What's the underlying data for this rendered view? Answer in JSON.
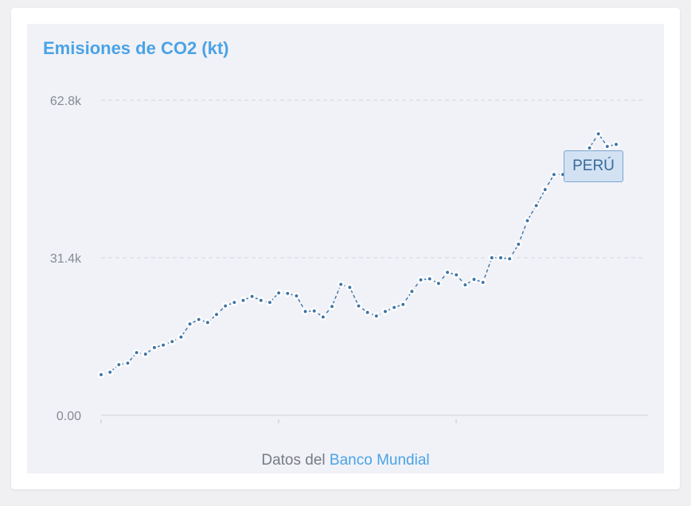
{
  "title": "Emisiones de CO2 (kt)",
  "source": {
    "prefix": "Datos del",
    "link_label": "Banco Mundial"
  },
  "colors": {
    "line": "#3d74a6",
    "title": "#4aa3e6",
    "grid": "#d4d6dc",
    "label_bg": "#d3e2f3"
  },
  "chart_data": {
    "type": "line",
    "title": "Emisiones de CO2 (kt)",
    "ylim": [
      0,
      62800
    ],
    "y_ticks": [
      {
        "value": 0,
        "label": "0.00"
      },
      {
        "value": 31400,
        "label": "31.4k"
      },
      {
        "value": 62800,
        "label": "62.8k"
      }
    ],
    "grid": "horizontal dashed",
    "x_ticks_labeled": false,
    "series": [
      {
        "name": "PERÚ",
        "values": [
          8100,
          8600,
          10100,
          10400,
          12500,
          12200,
          13500,
          14000,
          14700,
          15600,
          18200,
          19100,
          18500,
          20100,
          21800,
          22500,
          22900,
          23700,
          22900,
          22500,
          24400,
          24300,
          23800,
          20700,
          20800,
          19600,
          21700,
          26100,
          25500,
          21800,
          20500,
          19800,
          20700,
          21500,
          22100,
          24700,
          27000,
          27200,
          26300,
          28500,
          28000,
          26000,
          27100,
          26500,
          31400,
          31400,
          31200,
          34100,
          38800,
          41800,
          45000,
          48000,
          48000,
          49700,
          52100,
          53300,
          56100,
          53600,
          54000
        ]
      }
    ]
  }
}
